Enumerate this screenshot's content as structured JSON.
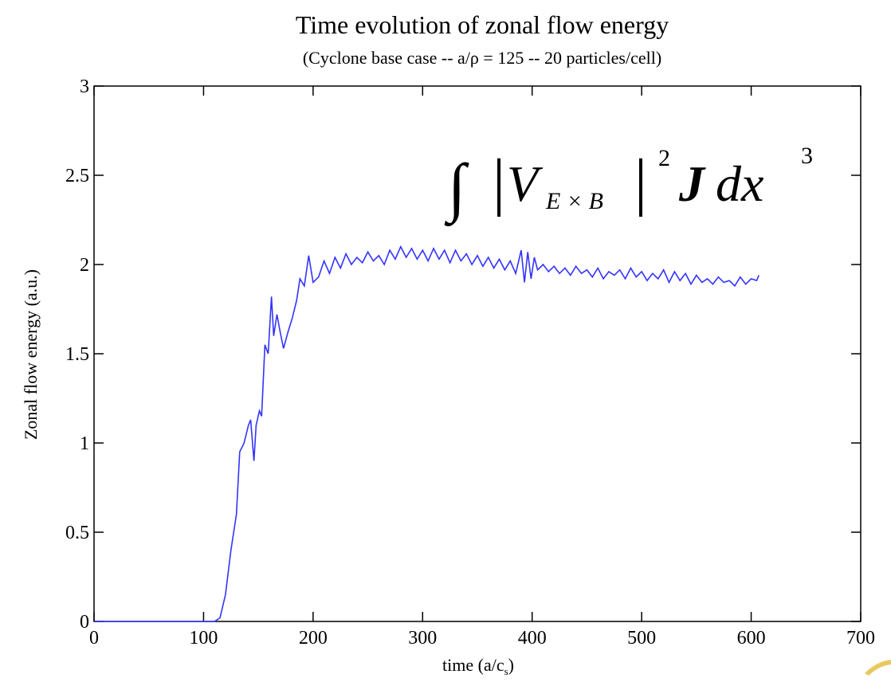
{
  "chart_data": {
    "type": "line",
    "title": "Time  evolution of zonal flow energy",
    "subtitle": "(Cyclone base case -- a/ρ = 125 -- 20 particles/cell)",
    "ylabel": "Zonal flow energy (a.u.)",
    "xlabel": [
      "time (a/c",
      "s",
      ")"
    ],
    "annotation": [
      "∫",
      "|",
      "V",
      "E × B",
      "|",
      "2",
      "J",
      "dx",
      "3"
    ],
    "xlim": [
      0,
      700
    ],
    "ylim": [
      0,
      3
    ],
    "xticks": [
      0,
      100,
      200,
      300,
      400,
      500,
      600,
      700
    ],
    "yticks": [
      0,
      0.5,
      1,
      1.5,
      2,
      2.5,
      3
    ],
    "series": [
      {
        "color": "#3333ff",
        "x": [
          0,
          50,
          100,
          110,
          115,
          120,
          125,
          130,
          133,
          137,
          141,
          143,
          146,
          148,
          151,
          153,
          156,
          159,
          162,
          164,
          167,
          170,
          173,
          177,
          181,
          185,
          188,
          192,
          196,
          200,
          205,
          210,
          215,
          220,
          225,
          230,
          235,
          240,
          245,
          250,
          255,
          260,
          265,
          270,
          275,
          280,
          285,
          290,
          295,
          300,
          305,
          310,
          315,
          320,
          325,
          330,
          335,
          340,
          345,
          350,
          355,
          360,
          365,
          370,
          375,
          380,
          385,
          390,
          393,
          396,
          399,
          402,
          405,
          410,
          415,
          420,
          425,
          430,
          435,
          440,
          445,
          450,
          455,
          460,
          465,
          470,
          475,
          480,
          485,
          490,
          495,
          500,
          505,
          510,
          515,
          520,
          525,
          530,
          535,
          540,
          545,
          550,
          555,
          560,
          565,
          570,
          575,
          580,
          585,
          590,
          595,
          600,
          605,
          607
        ],
        "values": [
          0,
          0,
          0,
          0,
          0.02,
          0.15,
          0.4,
          0.6,
          0.95,
          1.0,
          1.1,
          1.13,
          0.9,
          1.1,
          1.18,
          1.15,
          1.55,
          1.5,
          1.82,
          1.6,
          1.72,
          1.62,
          1.53,
          1.62,
          1.7,
          1.8,
          1.92,
          1.88,
          2.05,
          1.9,
          1.93,
          2.02,
          1.95,
          2.04,
          1.98,
          2.06,
          2.0,
          2.04,
          2.01,
          2.07,
          2.02,
          2.05,
          2.0,
          2.08,
          2.03,
          2.1,
          2.04,
          2.09,
          2.03,
          2.08,
          2.02,
          2.09,
          2.03,
          2.08,
          2.01,
          2.08,
          2.02,
          2.06,
          2.0,
          2.05,
          1.99,
          2.04,
          1.98,
          2.03,
          1.97,
          2.02,
          1.95,
          2.08,
          1.9,
          2.07,
          1.92,
          2.04,
          1.97,
          2.0,
          1.96,
          1.99,
          1.95,
          1.98,
          1.94,
          1.99,
          1.95,
          1.97,
          1.93,
          1.98,
          1.92,
          1.96,
          1.94,
          1.97,
          1.92,
          1.98,
          1.93,
          1.96,
          1.91,
          1.95,
          1.92,
          1.97,
          1.9,
          1.96,
          1.91,
          1.95,
          1.89,
          1.94,
          1.9,
          1.92,
          1.89,
          1.93,
          1.9,
          1.91,
          1.88,
          1.93,
          1.89,
          1.92,
          1.91,
          1.94
        ]
      }
    ]
  }
}
